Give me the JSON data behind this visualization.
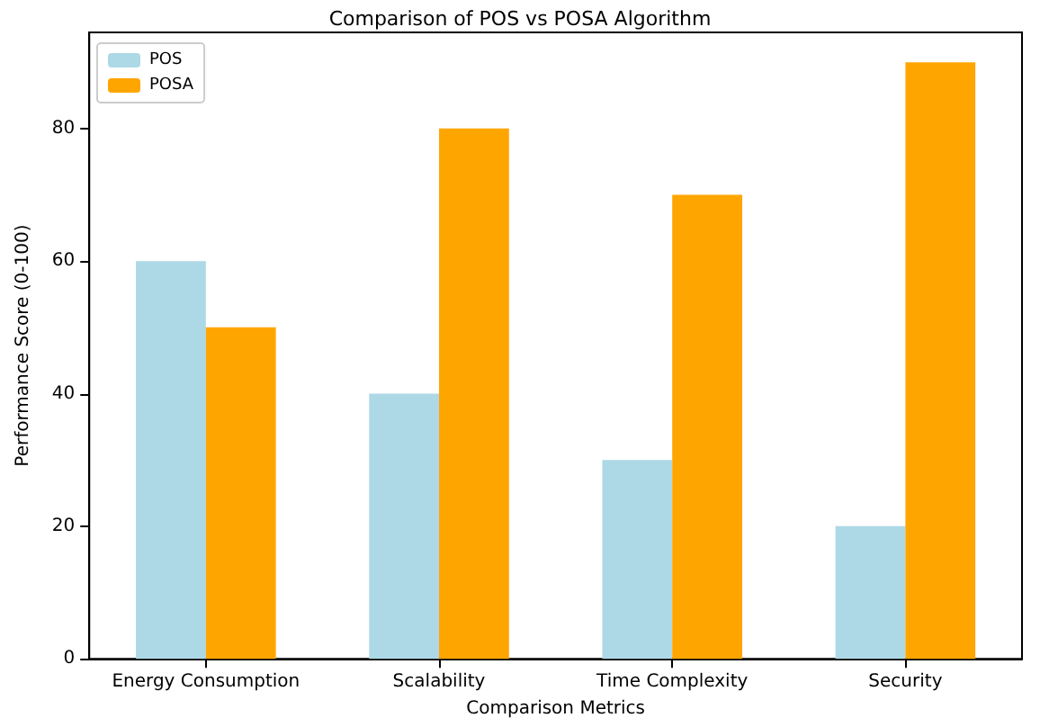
{
  "chart_data": {
    "type": "bar",
    "title": "Comparison of POS vs POSA Algorithm",
    "xlabel": "Comparison Metrics",
    "ylabel": "Performance Score (0-100)",
    "categories": [
      "Energy Consumption",
      "Scalability",
      "Time Complexity",
      "Security"
    ],
    "series": [
      {
        "name": "POS",
        "color": "#add8e6",
        "values": [
          60,
          40,
          30,
          20
        ]
      },
      {
        "name": "POSA",
        "color": "#ffa500",
        "values": [
          50,
          80,
          70,
          90
        ]
      }
    ],
    "ylim": [
      0,
      94.5
    ],
    "yticks": [
      0,
      20,
      40,
      60,
      80
    ],
    "grid": false,
    "legend": "top left"
  }
}
